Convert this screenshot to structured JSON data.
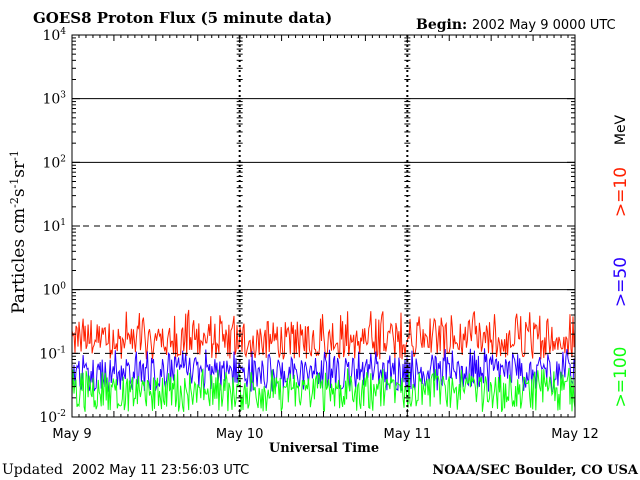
{
  "header": {
    "title": "GOES8 Proton Flux (5 minute data)",
    "begin_label": "Begin:",
    "begin_value": "2002 May 9 0000 UTC"
  },
  "footer": {
    "updated_label": "Updated",
    "updated_value": "2002 May 11 23:56:03 UTC",
    "credit": "NOAA/SEC Boulder, CO USA"
  },
  "colors": {
    "ge10": "#ff2000",
    "ge50": "#2a00ff",
    "ge100": "#10ff10",
    "axes": "#000000",
    "background": "#ffffff"
  },
  "chart_data": {
    "type": "line",
    "title": "GOES8 Proton Flux (5 minute data)",
    "xlabel": "Universal Time",
    "ylabel_parts": [
      "Particles cm",
      "-2",
      "s",
      "-1",
      "sr",
      "-1"
    ],
    "yscale": "log",
    "ylim": [
      0.01,
      10000
    ],
    "y_tick_exponents": [
      -2,
      -1,
      0,
      1,
      2,
      3,
      4
    ],
    "y_tick_base": "10",
    "solid_gridlines_at": [
      1,
      100,
      1000
    ],
    "dashed_gridlines_at": [
      0.1,
      10
    ],
    "xlim_days": [
      0,
      3
    ],
    "x_ticks": [
      {
        "day": 0,
        "label": "May 9"
      },
      {
        "day": 1,
        "label": "May 10"
      },
      {
        "day": 2,
        "label": "May 11"
      },
      {
        "day": 3,
        "label": "May 12"
      }
    ],
    "right_labels": {
      "unit": "MeV",
      "ge10": ">=10",
      "ge50": ">=50",
      "ge100": ">=100"
    },
    "series": [
      {
        "name": ">=10 MeV",
        "color_key": "ge10",
        "typical": 0.16,
        "low": 0.08,
        "high": 0.5
      },
      {
        "name": ">=50 MeV",
        "color_key": "ge50",
        "typical": 0.055,
        "low": 0.025,
        "high": 0.12
      },
      {
        "name": ">=100 MeV",
        "color_key": "ge100",
        "typical": 0.028,
        "low": 0.012,
        "high": 0.06
      }
    ]
  }
}
